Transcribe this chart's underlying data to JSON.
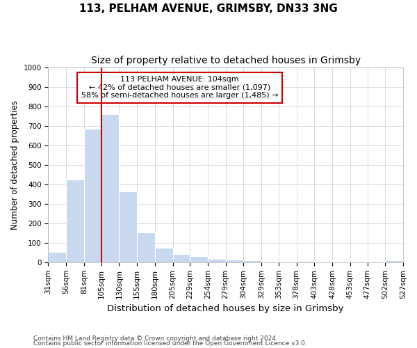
{
  "title1": "113, PELHAM AVENUE, GRIMSBY, DN33 3NG",
  "title2": "Size of property relative to detached houses in Grimsby",
  "xlabel": "Distribution of detached houses by size in Grimsby",
  "ylabel": "Number of detached properties",
  "footnote1": "Contains HM Land Registry data © Crown copyright and database right 2024.",
  "footnote2": "Contains public sector information licensed under the Open Government Licence v3.0.",
  "annotation_line1": "113 PELHAM AVENUE: 104sqm",
  "annotation_line2": "← 42% of detached houses are smaller (1,097)",
  "annotation_line3": "58% of semi-detached houses are larger (1,485) →",
  "bar_left_edges": [
    31,
    56,
    81,
    105,
    130,
    155,
    180,
    205,
    229,
    254,
    279,
    304,
    329,
    353,
    378,
    403,
    428,
    453,
    477,
    502
  ],
  "bar_widths": [
    25,
    25,
    24,
    25,
    25,
    25,
    25,
    24,
    25,
    25,
    25,
    25,
    24,
    25,
    25,
    25,
    25,
    24,
    25,
    25
  ],
  "bar_heights": [
    52,
    425,
    685,
    758,
    365,
    152,
    75,
    42,
    32,
    18,
    12,
    10,
    0,
    0,
    8,
    0,
    0,
    0,
    0,
    10
  ],
  "bar_color": "#c8d8ee",
  "bar_edgecolor": "#ffffff",
  "vline_x": 105,
  "vline_color": "#cc0000",
  "ylim": [
    0,
    1000
  ],
  "yticks": [
    0,
    100,
    200,
    300,
    400,
    500,
    600,
    700,
    800,
    900,
    1000
  ],
  "xtick_labels": [
    "31sqm",
    "56sqm",
    "81sqm",
    "105sqm",
    "130sqm",
    "155sqm",
    "180sqm",
    "205sqm",
    "229sqm",
    "254sqm",
    "279sqm",
    "304sqm",
    "329sqm",
    "353sqm",
    "378sqm",
    "403sqm",
    "428sqm",
    "453sqm",
    "477sqm",
    "502sqm",
    "527sqm"
  ],
  "grid_color": "#ccd4e0",
  "bg_color": "#ffffff",
  "annotation_box_color": "#ffffff",
  "annotation_box_edgecolor": "#cc0000",
  "title1_fontsize": 11,
  "title2_fontsize": 10,
  "xlabel_fontsize": 9.5,
  "ylabel_fontsize": 8.5,
  "tick_fontsize": 7.5,
  "annotation_fontsize": 8,
  "footnote_fontsize": 6.5
}
